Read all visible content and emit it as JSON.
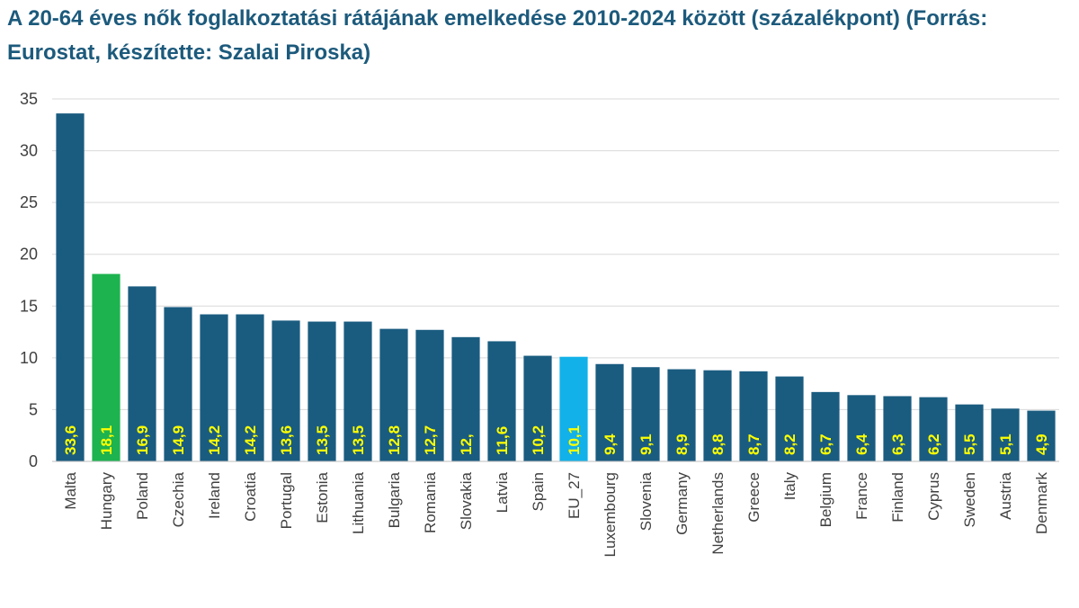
{
  "chart_data": {
    "type": "bar",
    "title": "A 20-64 éves nők foglalkoztatási rátájának emelkedése 2010-2024 között (százalékpont) (Forrás: Eurostat, készítette: Szalai Piroska)",
    "xlabel": "",
    "ylabel": "",
    "ylim": [
      0,
      35
    ],
    "yticks": [
      0,
      5,
      10,
      15,
      20,
      25,
      30,
      35
    ],
    "grid": true,
    "legend": "none",
    "categories": [
      "Malta",
      "Hungary",
      "Poland",
      "Czechia",
      "Ireland",
      "Croatia",
      "Portugal",
      "Estonia",
      "Lithuania",
      "Bulgaria",
      "Romania",
      "Slovakia",
      "Latvia",
      "Spain",
      "EU_27",
      "Luxembourg",
      "Slovenia",
      "Germany",
      "Netherlands",
      "Greece",
      "Italy",
      "Belgium",
      "France",
      "Finland",
      "Cyprus",
      "Sweden",
      "Austria",
      "Denmark"
    ],
    "values": [
      33.6,
      18.1,
      16.9,
      14.9,
      14.2,
      14.2,
      13.6,
      13.5,
      13.5,
      12.8,
      12.7,
      12.0,
      11.6,
      10.2,
      10.1,
      9.4,
      9.1,
      8.9,
      8.8,
      8.7,
      8.2,
      6.7,
      6.4,
      6.3,
      6.2,
      5.5,
      5.1,
      4.9
    ],
    "data_labels": [
      "33,6",
      "18,1",
      "16,9",
      "14,9",
      "14,2",
      "14,2",
      "13,6",
      "13,5",
      "13,5",
      "12,8",
      "12,7",
      "12,",
      "11,6",
      "10,2",
      "10,1",
      "9,4",
      "9,1",
      "8,9",
      "8,8",
      "8,7",
      "8,2",
      "6,7",
      "6,4",
      "6,3",
      "6,2",
      "5,5",
      "5,1",
      "4,9"
    ],
    "colors": {
      "default": "#1a5c80",
      "highlight": {
        "Hungary": "#1db34f",
        "EU_27": "#12b1ea"
      },
      "data_label": "#ffff00",
      "gridline": "#d9d9d9",
      "title": "#1c5a7c"
    }
  }
}
